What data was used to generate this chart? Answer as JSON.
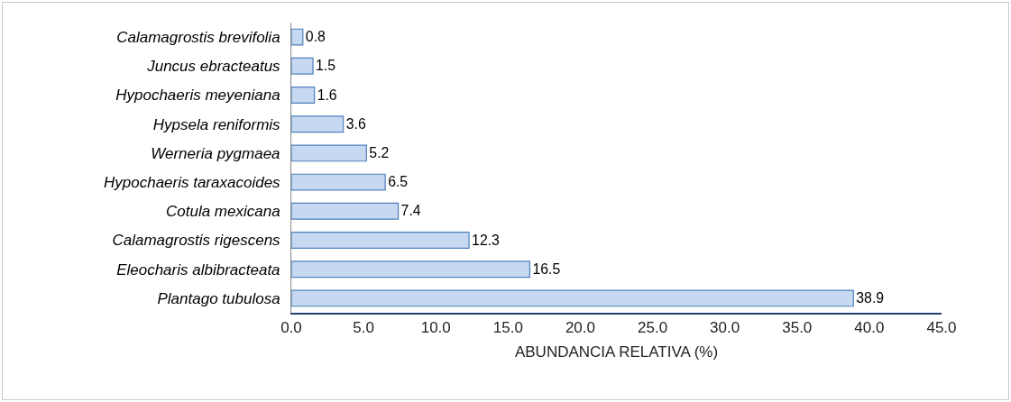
{
  "chart_data": {
    "type": "bar",
    "orientation": "horizontal",
    "xlabel": "ABUNDANCIA RELATIVA (%)",
    "categories": [
      "Calamagrostis brevifolia",
      "Juncus ebracteatus",
      "Hypochaeris meyeniana",
      "Hypsela reniformis",
      "Werneria pygmaea",
      "Hypochaeris taraxacoides",
      "Cotula mexicana",
      "Calamagrostis rigescens",
      "Eleocharis albibracteata",
      "Plantago tubulosa"
    ],
    "values": [
      0.8,
      1.5,
      1.6,
      3.6,
      5.2,
      6.5,
      7.4,
      12.3,
      16.5,
      38.9
    ],
    "color": "#c6d9f1",
    "xlim": [
      0,
      45
    ],
    "xticks": [
      {
        "value": 0,
        "label": "0.0"
      },
      {
        "value": 5,
        "label": "5.0"
      },
      {
        "value": 10,
        "label": "10.0"
      },
      {
        "value": 15,
        "label": "15.0"
      },
      {
        "value": 20,
        "label": "20.0"
      },
      {
        "value": 25,
        "label": "25.0"
      },
      {
        "value": 30,
        "label": "30.0"
      },
      {
        "value": 35,
        "label": "35.0"
      },
      {
        "value": 40,
        "label": "40.0"
      },
      {
        "value": 45,
        "label": "45.0"
      }
    ],
    "data_labels": true
  }
}
